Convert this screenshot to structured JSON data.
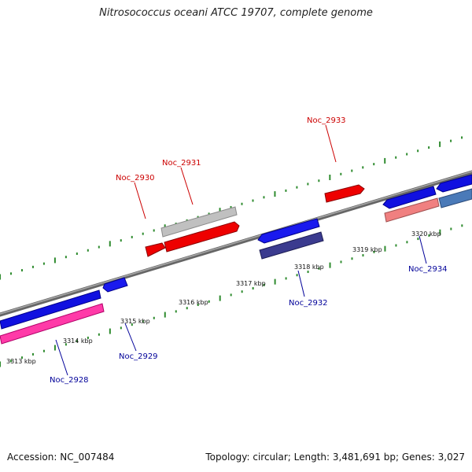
{
  "title": "Nitrosococcus oceani ATCC 19707, complete genome",
  "footer": {
    "accession": "Accession: NC_007484",
    "topology": "Topology: circular; Length: 3,481,691 bp; Genes: 3,027"
  },
  "colors": {
    "backbone": "#888888",
    "tick_dot": "#2e8b2e",
    "label_top": "#cc0000",
    "label_bottom": "#000099"
  },
  "kbp_labels": [
    "3313 kbp",
    "3314 kbp",
    "3315 kbp",
    "3316 kbp",
    "3317 kbp",
    "3318 kbp",
    "3319 kbp",
    "3320 kbp"
  ],
  "genes_top": [
    {
      "name": "Noc_2930"
    },
    {
      "name": "Noc_2931"
    },
    {
      "name": "Noc_2933"
    }
  ],
  "genes_bottom": [
    {
      "name": "Noc_2928"
    },
    {
      "name": "Noc_2929"
    },
    {
      "name": "Noc_2932"
    },
    {
      "name": "Noc_2934"
    }
  ]
}
